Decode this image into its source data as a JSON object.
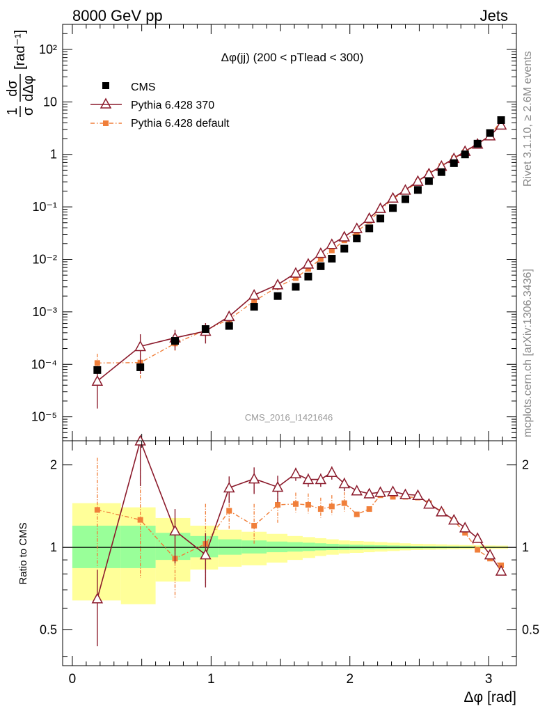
{
  "header": {
    "left": "8000 GeV pp",
    "right": "Jets",
    "side_top": "Rivet 3.1.10, ≥ 2.6M events",
    "side_bottom": "mcplots.cern.ch [arXiv:1306.3436]",
    "watermark": "CMS_2016_I1421646"
  },
  "colors": {
    "cms": "#000000",
    "pythia370": "#8b1a2b",
    "pythia_default": "#f07f3a",
    "band_stat": "#99ff99",
    "band_total": "#ffff99"
  },
  "chart_data": [
    {
      "type": "scatter",
      "panel": "main",
      "title": "Δφ(jj) (200 < pTlead <  300)",
      "ylabel_fraction_num": "1",
      "ylabel_fraction_den": "σ",
      "ylabel_fraction_num2": "dσ",
      "ylabel_fraction_den2": "dΔφ",
      "ylabel_unit": "[rad⁻¹]",
      "yscale": "log",
      "xlim": [
        -0.07,
        3.2
      ],
      "ylim": [
        3.5e-06,
        300
      ],
      "ytick_labels": [
        "10⁻⁵",
        "10⁻⁴",
        "10⁻³",
        "10⁻²",
        "10⁻¹",
        "1",
        "10",
        "10²"
      ],
      "ytick_values": [
        1e-05,
        0.0001,
        0.001,
        0.01,
        0.1,
        1,
        10,
        100
      ],
      "legend_position": "top-left",
      "series": [
        {
          "name": "CMS",
          "style": "square",
          "x": [
            0.18,
            0.49,
            0.74,
            0.96,
            1.13,
            1.31,
            1.48,
            1.61,
            1.7,
            1.79,
            1.87,
            1.96,
            2.05,
            2.14,
            2.22,
            2.31,
            2.4,
            2.49,
            2.57,
            2.66,
            2.75,
            2.83,
            2.92,
            3.01,
            3.09
          ],
          "y": [
            7.8e-05,
            8.8e-05,
            0.00028,
            0.00047,
            0.00054,
            0.00125,
            0.002,
            0.003,
            0.0047,
            0.0074,
            0.0103,
            0.016,
            0.025,
            0.039,
            0.06,
            0.095,
            0.14,
            0.21,
            0.31,
            0.46,
            0.68,
            1.0,
            1.6,
            2.55,
            4.5
          ]
        },
        {
          "name": "Pythia 6.428 370",
          "style": "triangle-line",
          "x": [
            0.18,
            0.49,
            0.74,
            0.96,
            1.13,
            1.31,
            1.48,
            1.61,
            1.7,
            1.79,
            1.87,
            1.96,
            2.05,
            2.14,
            2.22,
            2.31,
            2.4,
            2.49,
            2.57,
            2.66,
            2.75,
            2.83,
            2.92,
            3.01,
            3.09
          ],
          "y": [
            4.8e-05,
            0.00022,
            0.00032,
            0.00043,
            0.00082,
            0.0021,
            0.0033,
            0.0055,
            0.0082,
            0.0131,
            0.0194,
            0.027,
            0.039,
            0.061,
            0.094,
            0.148,
            0.21,
            0.31,
            0.43,
            0.6,
            0.84,
            1.15,
            1.58,
            2.27,
            3.65
          ]
        },
        {
          "name": "Pythia 6.428 default",
          "style": "square-dashdot",
          "x": [
            0.18,
            0.49,
            0.74,
            0.96,
            1.13,
            1.31,
            1.48,
            1.61,
            1.7,
            1.79,
            1.87,
            1.96,
            2.05,
            2.14,
            2.22,
            2.31,
            2.4,
            2.49,
            2.57,
            2.66,
            2.75,
            2.83,
            2.92,
            3.01,
            3.09
          ],
          "y": [
            0.000106,
            0.000108,
            0.00025,
            0.00045,
            0.00072,
            0.0016,
            0.003,
            0.0044,
            0.0066,
            0.0102,
            0.0148,
            0.023,
            0.033,
            0.054,
            0.087,
            0.142,
            0.2,
            0.3,
            0.43,
            0.6,
            0.84,
            1.11,
            1.55,
            2.33,
            4.3
          ]
        }
      ]
    },
    {
      "type": "line",
      "panel": "ratio",
      "ylabel": "Ratio to CMS",
      "xlabel": "Δφ [rad]",
      "yscale": "log",
      "xlim": [
        -0.07,
        3.2
      ],
      "ylim": [
        0.37,
        2.45
      ],
      "xtick_labels": [
        "0",
        "1",
        "2",
        "3"
      ],
      "xtick_values": [
        0,
        1,
        2,
        3
      ],
      "ytick_labels": [
        "0.5",
        "1",
        "2"
      ],
      "ytick_values": [
        0.5,
        1,
        2
      ],
      "bands": {
        "edges": [
          0.0,
          0.35,
          0.6,
          0.85,
          1.05,
          1.22,
          1.4,
          1.55,
          1.66,
          1.75,
          1.83,
          1.92,
          2.0,
          2.1,
          2.18,
          2.27,
          2.36,
          2.44,
          2.53,
          2.62,
          2.7,
          2.79,
          2.88,
          2.96,
          3.05,
          3.14
        ],
        "total_low": [
          0.64,
          0.62,
          0.75,
          0.83,
          0.85,
          0.86,
          0.88,
          0.9,
          0.915,
          0.93,
          0.94,
          0.95,
          0.955,
          0.96,
          0.965,
          0.97,
          0.975,
          0.978,
          0.98,
          0.982,
          0.984,
          0.985,
          0.986,
          0.987,
          0.988
        ],
        "total_high": [
          1.45,
          1.4,
          1.28,
          1.2,
          1.16,
          1.14,
          1.12,
          1.1,
          1.09,
          1.08,
          1.07,
          1.06,
          1.055,
          1.05,
          1.045,
          1.04,
          1.035,
          1.03,
          1.028,
          1.025,
          1.022,
          1.02,
          1.018,
          1.016,
          1.015
        ],
        "stat_low": [
          0.84,
          0.84,
          0.9,
          0.92,
          0.94,
          0.95,
          0.96,
          0.965,
          0.97,
          0.975,
          0.978,
          0.98,
          0.982,
          0.984,
          0.986,
          0.988,
          0.99,
          0.991,
          0.992,
          0.993,
          0.994,
          0.995,
          0.996,
          0.996,
          0.997
        ],
        "stat_high": [
          1.2,
          1.2,
          1.13,
          1.1,
          1.07,
          1.06,
          1.05,
          1.045,
          1.04,
          1.035,
          1.03,
          1.025,
          1.022,
          1.02,
          1.018,
          1.016,
          1.014,
          1.012,
          1.011,
          1.01,
          1.009,
          1.008,
          1.007,
          1.006,
          1.005
        ]
      },
      "series": [
        {
          "name": "Pythia 6.428 370",
          "x": [
            0.18,
            0.49,
            0.74,
            0.96,
            1.13,
            1.31,
            1.48,
            1.61,
            1.7,
            1.79,
            1.87,
            1.96,
            2.05,
            2.14,
            2.22,
            2.31,
            2.4,
            2.49,
            2.57,
            2.66,
            2.75,
            2.83,
            2.92,
            3.01,
            3.09
          ],
          "y": [
            0.65,
            2.5,
            1.15,
            0.94,
            1.65,
            1.78,
            1.66,
            1.86,
            1.77,
            1.77,
            1.88,
            1.71,
            1.61,
            1.57,
            1.59,
            1.6,
            1.56,
            1.55,
            1.44,
            1.35,
            1.26,
            1.18,
            1.08,
            0.94,
            0.82
          ]
        },
        {
          "name": "Pythia 6.428 default",
          "x": [
            0.18,
            0.49,
            0.74,
            0.96,
            1.13,
            1.31,
            1.48,
            1.61,
            1.7,
            1.79,
            1.87,
            1.96,
            2.05,
            2.14,
            2.22,
            2.31,
            2.4,
            2.49,
            2.57,
            2.66,
            2.75,
            2.83,
            2.92,
            3.01,
            3.09
          ],
          "y": [
            1.37,
            1.26,
            0.91,
            1.03,
            1.36,
            1.2,
            1.43,
            1.44,
            1.43,
            1.38,
            1.41,
            1.45,
            1.32,
            1.38,
            1.55,
            1.53,
            1.53,
            1.52,
            1.45,
            1.35,
            1.25,
            1.13,
            0.98,
            0.91,
            0.86
          ]
        }
      ]
    }
  ]
}
